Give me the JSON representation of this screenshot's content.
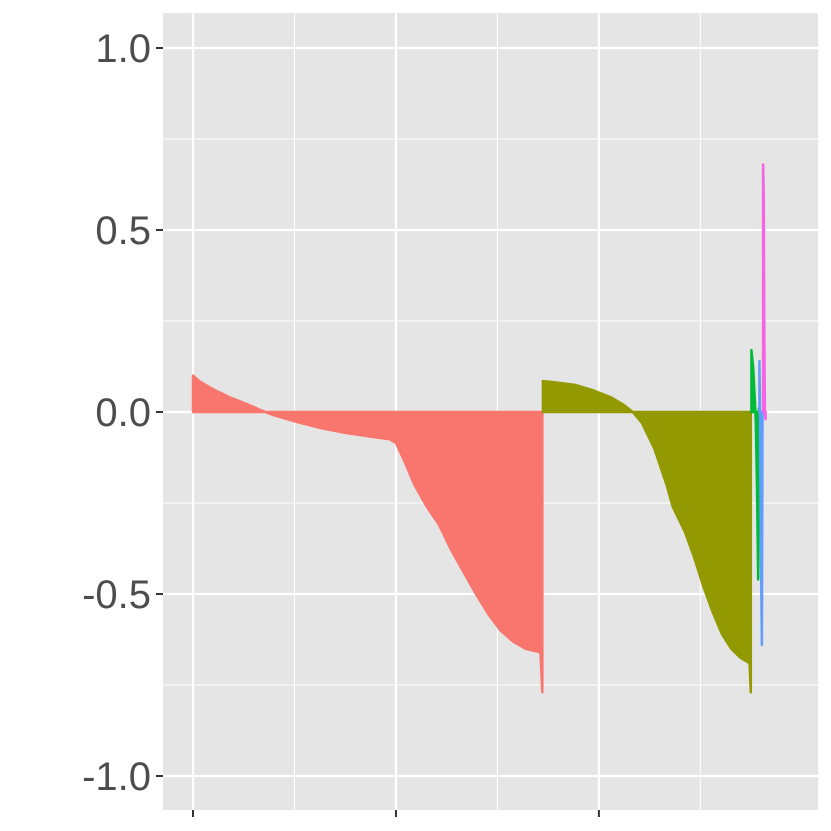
{
  "chart_data": {
    "type": "area",
    "title": "",
    "xlabel": "",
    "ylabel": "",
    "ylim": [
      -1.1,
      1.1
    ],
    "xlim": [
      -0.0,
      1.0
    ],
    "y_ticks": [
      1.0,
      0.5,
      0.0,
      -0.5,
      -1.0
    ],
    "y_tick_labels": [
      "1.0",
      "0.5",
      "0.0",
      "-0.5",
      "-1.0"
    ],
    "x_major_gridlines": [
      0.0,
      0.33,
      0.66
    ],
    "x_minor_gridlines": [
      0.165,
      0.495,
      0.825
    ],
    "grid": true,
    "panel_background": "#e5e5e5",
    "series": [
      {
        "color": "#f8766d",
        "points": [
          [
            0.0,
            0.1
          ],
          [
            0.01,
            0.085
          ],
          [
            0.03,
            0.065
          ],
          [
            0.06,
            0.04
          ],
          [
            0.09,
            0.02
          ],
          [
            0.11,
            0.005
          ],
          [
            0.13,
            -0.008
          ],
          [
            0.17,
            -0.028
          ],
          [
            0.21,
            -0.045
          ],
          [
            0.25,
            -0.058
          ],
          [
            0.29,
            -0.068
          ],
          [
            0.32,
            -0.075
          ],
          [
            0.33,
            -0.085
          ],
          [
            0.345,
            -0.14
          ],
          [
            0.36,
            -0.2
          ],
          [
            0.38,
            -0.26
          ],
          [
            0.4,
            -0.31
          ],
          [
            0.42,
            -0.38
          ],
          [
            0.44,
            -0.44
          ],
          [
            0.46,
            -0.5
          ],
          [
            0.48,
            -0.555
          ],
          [
            0.5,
            -0.6
          ],
          [
            0.52,
            -0.63
          ],
          [
            0.54,
            -0.65
          ],
          [
            0.565,
            -0.66
          ],
          [
            0.568,
            -0.77
          ]
        ]
      },
      {
        "color": "#939900",
        "points": [
          [
            0.569,
            0.085
          ],
          [
            0.58,
            0.083
          ],
          [
            0.62,
            0.075
          ],
          [
            0.65,
            0.06
          ],
          [
            0.68,
            0.04
          ],
          [
            0.7,
            0.02
          ],
          [
            0.715,
            0.0
          ],
          [
            0.73,
            -0.03
          ],
          [
            0.75,
            -0.1
          ],
          [
            0.77,
            -0.2
          ],
          [
            0.78,
            -0.26
          ],
          [
            0.8,
            -0.33
          ],
          [
            0.815,
            -0.4
          ],
          [
            0.83,
            -0.48
          ],
          [
            0.845,
            -0.55
          ],
          [
            0.86,
            -0.61
          ],
          [
            0.875,
            -0.65
          ],
          [
            0.89,
            -0.675
          ],
          [
            0.905,
            -0.69
          ],
          [
            0.907,
            -0.77
          ]
        ]
      },
      {
        "color": "#00ba38",
        "points": [
          [
            0.908,
            0.17
          ],
          [
            0.911,
            0.12
          ],
          [
            0.913,
            0.05
          ],
          [
            0.915,
            -0.02
          ],
          [
            0.917,
            -0.2
          ],
          [
            0.919,
            -0.46
          ],
          [
            0.92,
            0.01
          ]
        ]
      },
      {
        "color": "#619cff",
        "points": [
          [
            0.921,
            0.14
          ],
          [
            0.922,
            0.0
          ],
          [
            0.923,
            -0.3
          ],
          [
            0.925,
            -0.64
          ],
          [
            0.926,
            -0.02
          ]
        ]
      },
      {
        "color": "#f564e3",
        "points": [
          [
            0.927,
            0.68
          ],
          [
            0.928,
            0.6
          ],
          [
            0.929,
            0.2
          ],
          [
            0.93,
            -0.01
          ],
          [
            0.931,
            -0.02
          ]
        ]
      }
    ]
  }
}
